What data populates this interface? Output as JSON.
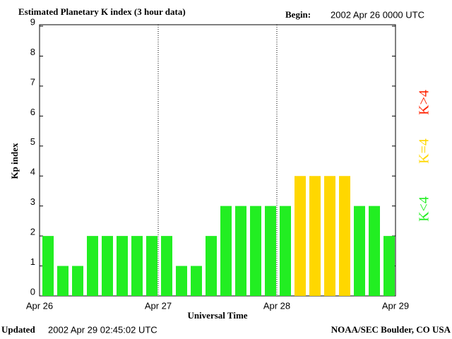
{
  "chart_data": {
    "type": "bar",
    "title": "Estimated Planetary K index (3 hour data)",
    "begin_label": "Begin:",
    "begin": "2002 Apr 26 0000 UTC",
    "y_label": "Kp index",
    "x_label": "Universal Time",
    "updated_label": "Updated",
    "updated": "2002 Apr 29 02:45:02 UTC",
    "source": "NOAA/SEC Boulder, CO USA",
    "values": [
      2,
      1,
      1,
      2,
      2,
      2,
      2,
      2,
      2,
      1,
      1,
      2,
      3,
      3,
      3,
      3,
      3,
      4,
      4,
      4,
      4,
      3,
      3,
      2
    ],
    "colors": [
      "#22ee22",
      "#22ee22",
      "#22ee22",
      "#22ee22",
      "#22ee22",
      "#22ee22",
      "#22ee22",
      "#22ee22",
      "#22ee22",
      "#22ee22",
      "#22ee22",
      "#22ee22",
      "#22ee22",
      "#22ee22",
      "#22ee22",
      "#22ee22",
      "#22ee22",
      "#ffd700",
      "#ffd700",
      "#ffd700",
      "#ffd700",
      "#22ee22",
      "#22ee22",
      "#22ee22"
    ],
    "xticks": [
      "Apr 26",
      "Apr 27",
      "Apr 28",
      "Apr 29"
    ],
    "ylim": [
      0,
      9
    ],
    "yticks": [
      0,
      1,
      2,
      3,
      4,
      5,
      6,
      7,
      8,
      9
    ],
    "legend": [
      {
        "label": "K<4",
        "color": "#22ee22"
      },
      {
        "label": "K=4",
        "color": "#ffd700"
      },
      {
        "label": "K>4",
        "color": "#ff2200"
      }
    ]
  }
}
